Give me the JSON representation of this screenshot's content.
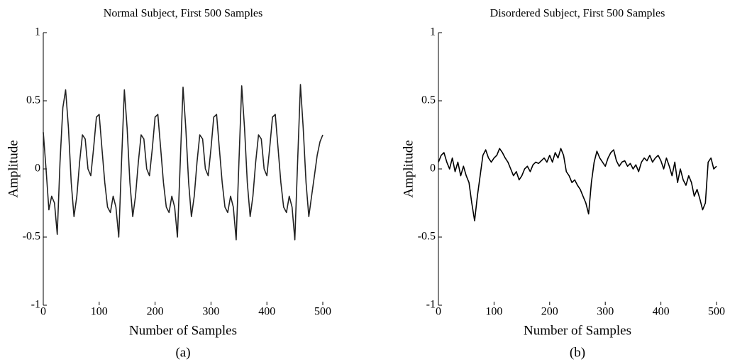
{
  "chart_data": [
    {
      "type": "line",
      "title": "Normal Subject, First 500 Samples",
      "xlabel": "Number of Samples",
      "ylabel": "Amplitude",
      "caption": "(a)",
      "x": [
        0,
        5,
        10,
        15,
        20,
        25,
        30,
        35,
        40,
        45,
        50,
        55,
        60,
        65,
        70,
        75,
        80,
        85,
        90,
        95,
        100,
        105,
        110,
        115,
        120,
        125,
        130,
        135,
        140,
        145,
        150,
        155,
        160,
        165,
        170,
        175,
        180,
        185,
        190,
        195,
        200,
        205,
        210,
        215,
        220,
        225,
        230,
        235,
        240,
        245,
        250,
        255,
        260,
        265,
        270,
        275,
        280,
        285,
        290,
        295,
        300,
        305,
        310,
        315,
        320,
        325,
        330,
        335,
        340,
        345,
        350,
        355,
        360,
        365,
        370,
        375,
        380,
        385,
        390,
        395,
        400,
        405,
        410,
        415,
        420,
        425,
        430,
        435,
        440,
        445,
        450,
        455,
        460,
        465,
        470,
        475,
        480,
        485,
        490,
        495,
        500
      ],
      "series": [
        {
          "name": "Normal",
          "color": "#222222",
          "values": [
            0.27,
            0.0,
            -0.3,
            -0.2,
            -0.25,
            -0.48,
            0.05,
            0.45,
            0.58,
            0.3,
            -0.1,
            -0.35,
            -0.2,
            0.05,
            0.25,
            0.22,
            0.0,
            -0.05,
            0.15,
            0.38,
            0.4,
            0.15,
            -0.1,
            -0.28,
            -0.32,
            -0.2,
            -0.28,
            -0.5,
            0.05,
            0.58,
            0.3,
            -0.1,
            -0.35,
            -0.2,
            0.05,
            0.25,
            0.22,
            0.0,
            -0.05,
            0.15,
            0.38,
            0.4,
            0.15,
            -0.1,
            -0.28,
            -0.32,
            -0.2,
            -0.28,
            -0.5,
            0.05,
            0.6,
            0.3,
            -0.1,
            -0.35,
            -0.2,
            0.05,
            0.25,
            0.22,
            0.0,
            -0.05,
            0.15,
            0.38,
            0.4,
            0.15,
            -0.1,
            -0.28,
            -0.32,
            -0.2,
            -0.28,
            -0.52,
            0.05,
            0.61,
            0.3,
            -0.1,
            -0.35,
            -0.2,
            0.05,
            0.25,
            0.22,
            0.0,
            -0.05,
            0.15,
            0.38,
            0.4,
            0.15,
            -0.1,
            -0.28,
            -0.32,
            -0.2,
            -0.28,
            -0.52,
            0.05,
            0.62,
            0.3,
            -0.1,
            -0.35,
            -0.2,
            -0.05,
            0.1,
            0.2,
            0.25
          ]
        }
      ],
      "xlim": [
        0,
        500
      ],
      "ylim": [
        -1,
        1
      ],
      "xticks": [
        0,
        100,
        200,
        300,
        400,
        500
      ],
      "yticks": [
        -1,
        -0.5,
        0,
        0.5,
        1
      ]
    },
    {
      "type": "line",
      "title": "Disordered Subject, First 500 Samples",
      "xlabel": "Number of Samples",
      "ylabel": "Amplitude",
      "caption": "(b)",
      "x": [
        0,
        5,
        10,
        15,
        20,
        25,
        30,
        35,
        40,
        45,
        50,
        55,
        60,
        65,
        70,
        75,
        80,
        85,
        90,
        95,
        100,
        105,
        110,
        115,
        120,
        125,
        130,
        135,
        140,
        145,
        150,
        155,
        160,
        165,
        170,
        175,
        180,
        185,
        190,
        195,
        200,
        205,
        210,
        215,
        220,
        225,
        230,
        235,
        240,
        245,
        250,
        255,
        260,
        265,
        270,
        275,
        280,
        285,
        290,
        295,
        300,
        305,
        310,
        315,
        320,
        325,
        330,
        335,
        340,
        345,
        350,
        355,
        360,
        365,
        370,
        375,
        380,
        385,
        390,
        395,
        400,
        405,
        410,
        415,
        420,
        425,
        430,
        435,
        440,
        445,
        450,
        455,
        460,
        465,
        470,
        475,
        480,
        485,
        490,
        495,
        500
      ],
      "series": [
        {
          "name": "Disordered",
          "color": "#000000",
          "values": [
            0.05,
            0.1,
            0.12,
            0.05,
            0.0,
            0.08,
            -0.02,
            0.05,
            -0.05,
            0.02,
            -0.05,
            -0.1,
            -0.25,
            -0.38,
            -0.2,
            -0.05,
            0.1,
            0.14,
            0.08,
            0.05,
            0.08,
            0.1,
            0.15,
            0.12,
            0.08,
            0.05,
            0.0,
            -0.05,
            -0.02,
            -0.08,
            -0.05,
            0.0,
            0.02,
            -0.02,
            0.03,
            0.05,
            0.04,
            0.06,
            0.08,
            0.05,
            0.1,
            0.05,
            0.12,
            0.08,
            0.15,
            0.1,
            -0.02,
            -0.05,
            -0.1,
            -0.08,
            -0.12,
            -0.15,
            -0.2,
            -0.25,
            -0.33,
            -0.1,
            0.05,
            0.13,
            0.08,
            0.05,
            0.02,
            0.08,
            0.12,
            0.14,
            0.06,
            0.02,
            0.05,
            0.06,
            0.02,
            0.04,
            0.0,
            0.03,
            -0.02,
            0.05,
            0.08,
            0.06,
            0.1,
            0.05,
            0.08,
            0.1,
            0.06,
            0.0,
            0.08,
            0.02,
            -0.05,
            0.05,
            -0.1,
            0.0,
            -0.08,
            -0.12,
            -0.05,
            -0.1,
            -0.2,
            -0.15,
            -0.22,
            -0.3,
            -0.25,
            0.05,
            0.08,
            0.0,
            0.02
          ]
        }
      ],
      "xlim": [
        0,
        500
      ],
      "ylim": [
        -1,
        1
      ],
      "xticks": [
        0,
        100,
        200,
        300,
        400,
        500
      ],
      "yticks": [
        -1,
        -0.5,
        0,
        0.5,
        1
      ]
    }
  ]
}
